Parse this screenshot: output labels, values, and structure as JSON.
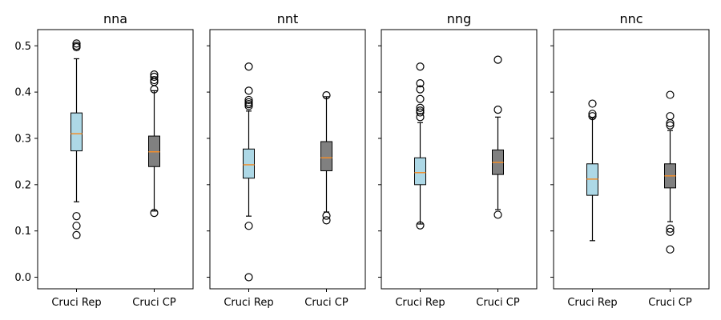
{
  "chart_data": {
    "type": "box",
    "ylim": [
      -0.025,
      0.535
    ],
    "yticks": [
      0.0,
      0.1,
      0.2,
      0.3,
      0.4,
      0.5
    ],
    "categories": [
      "Cruci Rep",
      "Cruci CP"
    ],
    "box_colors": [
      "#add8e6",
      "#808080"
    ],
    "median_color": "#f28e2b",
    "panels": [
      {
        "title": "nna",
        "boxes": [
          {
            "category": "Cruci Rep",
            "whislo": 0.163,
            "q1": 0.273,
            "median": 0.31,
            "q3": 0.355,
            "whishi": 0.472,
            "fliers": [
              0.505,
              0.5,
              0.497,
              0.132,
              0.111,
              0.091
            ]
          },
          {
            "category": "Cruci CP",
            "whislo": 0.143,
            "q1": 0.239,
            "median": 0.271,
            "q3": 0.305,
            "whishi": 0.403,
            "fliers": [
              0.438,
              0.433,
              0.426,
              0.422,
              0.406,
              0.139
            ]
          }
        ]
      },
      {
        "title": "nnt",
        "boxes": [
          {
            "category": "Cruci Rep",
            "whislo": 0.132,
            "q1": 0.214,
            "median": 0.243,
            "q3": 0.277,
            "whishi": 0.359,
            "fliers": [
              0.455,
              0.403,
              0.383,
              0.378,
              0.374,
              0.37,
              0.111,
              0.0
            ]
          },
          {
            "category": "Cruci CP",
            "whislo": 0.141,
            "q1": 0.23,
            "median": 0.258,
            "q3": 0.293,
            "whishi": 0.39,
            "fliers": [
              0.393,
              0.133,
              0.123
            ]
          }
        ]
      },
      {
        "title": "nng",
        "boxes": [
          {
            "category": "Cruci Rep",
            "whislo": 0.115,
            "q1": 0.2,
            "median": 0.226,
            "q3": 0.258,
            "whishi": 0.334,
            "fliers": [
              0.455,
              0.419,
              0.406,
              0.385,
              0.366,
              0.36,
              0.356,
              0.346,
              0.112
            ]
          },
          {
            "category": "Cruci CP",
            "whislo": 0.146,
            "q1": 0.222,
            "median": 0.248,
            "q3": 0.275,
            "whishi": 0.346,
            "fliers": [
              0.47,
              0.362,
              0.135
            ]
          }
        ]
      },
      {
        "title": "nnc",
        "boxes": [
          {
            "category": "Cruci Rep",
            "whislo": 0.079,
            "q1": 0.177,
            "median": 0.212,
            "q3": 0.245,
            "whishi": 0.344,
            "fliers": [
              0.375,
              0.353,
              0.348
            ]
          },
          {
            "category": "Cruci CP",
            "whislo": 0.12,
            "q1": 0.193,
            "median": 0.219,
            "q3": 0.245,
            "whishi": 0.317,
            "fliers": [
              0.394,
              0.348,
              0.333,
              0.328,
              0.105,
              0.098,
              0.06
            ]
          }
        ]
      }
    ]
  }
}
